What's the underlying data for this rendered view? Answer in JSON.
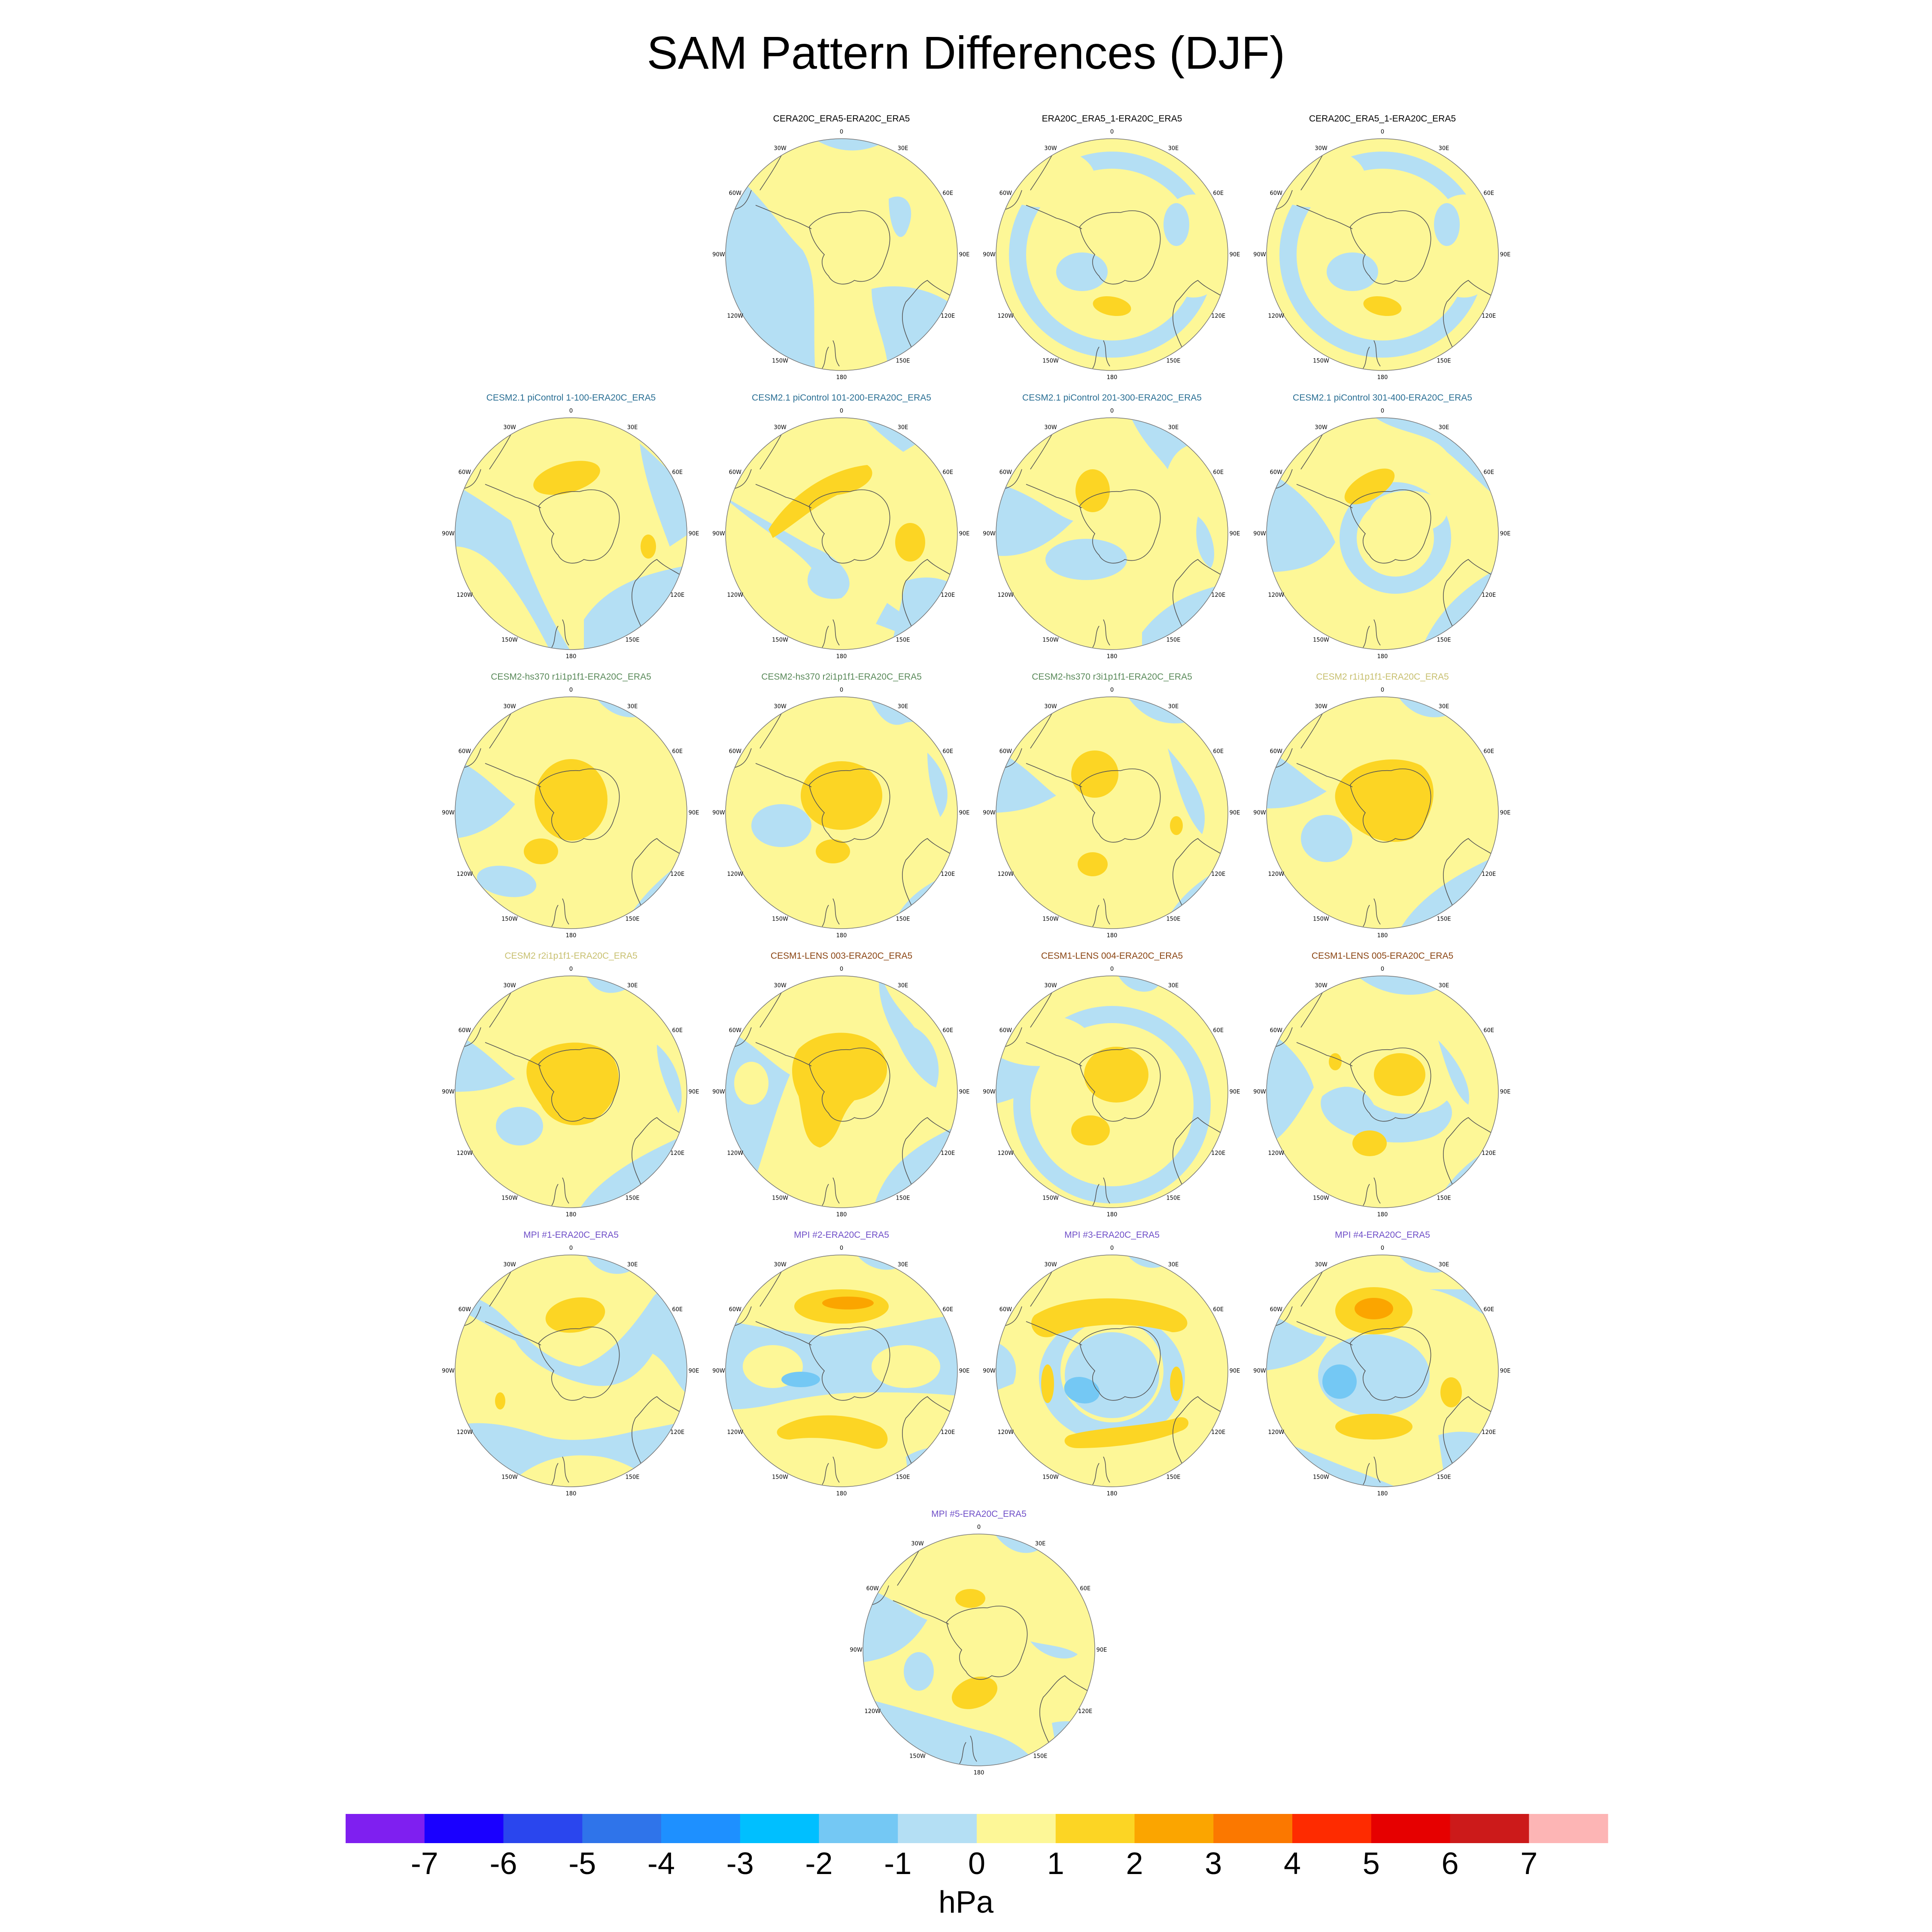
{
  "title": "SAM Pattern Differences (DJF)",
  "units": "hPa",
  "lon_labels": [
    "0",
    "30E",
    "60E",
    "90E",
    "120E",
    "150E",
    "180",
    "150W",
    "120W",
    "90W",
    "60W",
    "30W"
  ],
  "colors": {
    "title_reanalysis": "#000000",
    "title_cesm21_picontrol": "#2a6f94",
    "title_cesm2_hs370": "#5a8a5a",
    "title_cesm2": "#c8c070",
    "title_cesm1_lens": "#8b4513",
    "title_mpi": "#7050c8",
    "coast": "#555555"
  },
  "chart_data": {
    "type": "heatmap",
    "projection": "south-polar-stereographic",
    "colorbar": {
      "levels": [
        -7,
        -6,
        -5,
        -4,
        -3,
        -2,
        -1,
        0,
        1,
        2,
        3,
        4,
        5,
        6,
        7
      ],
      "tick_labels": [
        "-7",
        "-6",
        "-5",
        "-4",
        "-3",
        "-2",
        "-1",
        "0",
        "1",
        "2",
        "3",
        "4",
        "5",
        "6",
        "7"
      ],
      "colors": [
        "#7f1ff0",
        "#1a00ff",
        "#2a46ee",
        "#2f74ea",
        "#1e90ff",
        "#00bfff",
        "#74c8f4",
        "#b4dff4",
        "#fdf797",
        "#fcd524",
        "#fba500",
        "#fb7800",
        "#fe2b00",
        "#e60000",
        "#cc1a1a",
        "#fdb5b5"
      ],
      "label": "hPa"
    },
    "panels": [
      {
        "title": "CERA20C_ERA5-ERA20C_ERA5",
        "group": "reanalysis",
        "pattern": "cera"
      },
      {
        "title": "ERA20C_ERA5_1-ERA20C_ERA5",
        "group": "reanalysis",
        "pattern": "ring_blue"
      },
      {
        "title": "CERA20C_ERA5_1-ERA20C_ERA5",
        "group": "reanalysis",
        "pattern": "ring_blue"
      },
      {
        "title": "CESM2.1 piControl 1-100-ERA20C_ERA5",
        "group": "cesm21_picontrol",
        "pattern": "pi_a"
      },
      {
        "title": "CESM2.1 piControl 101-200-ERA20C_ERA5",
        "group": "cesm21_picontrol",
        "pattern": "pi_b"
      },
      {
        "title": "CESM2.1 piControl 201-300-ERA20C_ERA5",
        "group": "cesm21_picontrol",
        "pattern": "pi_c"
      },
      {
        "title": "CESM2.1 piControl 301-400-ERA20C_ERA5",
        "group": "cesm21_picontrol",
        "pattern": "pi_d"
      },
      {
        "title": "CESM2-hs370 r1i1p1f1-ERA20C_ERA5",
        "group": "cesm2_hs370",
        "pattern": "hs_a"
      },
      {
        "title": "CESM2-hs370 r2i1p1f1-ERA20C_ERA5",
        "group": "cesm2_hs370",
        "pattern": "hs_b"
      },
      {
        "title": "CESM2-hs370 r3i1p1f1-ERA20C_ERA5",
        "group": "cesm2_hs370",
        "pattern": "hs_c"
      },
      {
        "title": "CESM2 r1i1p1f1-ERA20C_ERA5",
        "group": "cesm2",
        "pattern": "c2_a"
      },
      {
        "title": "CESM2 r2i1p1f1-ERA20C_ERA5",
        "group": "cesm2",
        "pattern": "c2_b"
      },
      {
        "title": "CESM1-LENS 003-ERA20C_ERA5",
        "group": "cesm1_lens",
        "pattern": "lens_a"
      },
      {
        "title": "CESM1-LENS 004-ERA20C_ERA5",
        "group": "cesm1_lens",
        "pattern": "lens_b"
      },
      {
        "title": "CESM1-LENS 005-ERA20C_ERA5",
        "group": "cesm1_lens",
        "pattern": "lens_c"
      },
      {
        "title": "MPI #1-ERA20C_ERA5",
        "group": "mpi",
        "pattern": "mpi_1"
      },
      {
        "title": "MPI #2-ERA20C_ERA5",
        "group": "mpi",
        "pattern": "mpi_2"
      },
      {
        "title": "MPI #3-ERA20C_ERA5",
        "group": "mpi",
        "pattern": "mpi_3"
      },
      {
        "title": "MPI #4-ERA20C_ERA5",
        "group": "mpi",
        "pattern": "mpi_4"
      },
      {
        "title": "MPI #5-ERA20C_ERA5",
        "group": "mpi",
        "pattern": "mpi_5"
      }
    ]
  }
}
